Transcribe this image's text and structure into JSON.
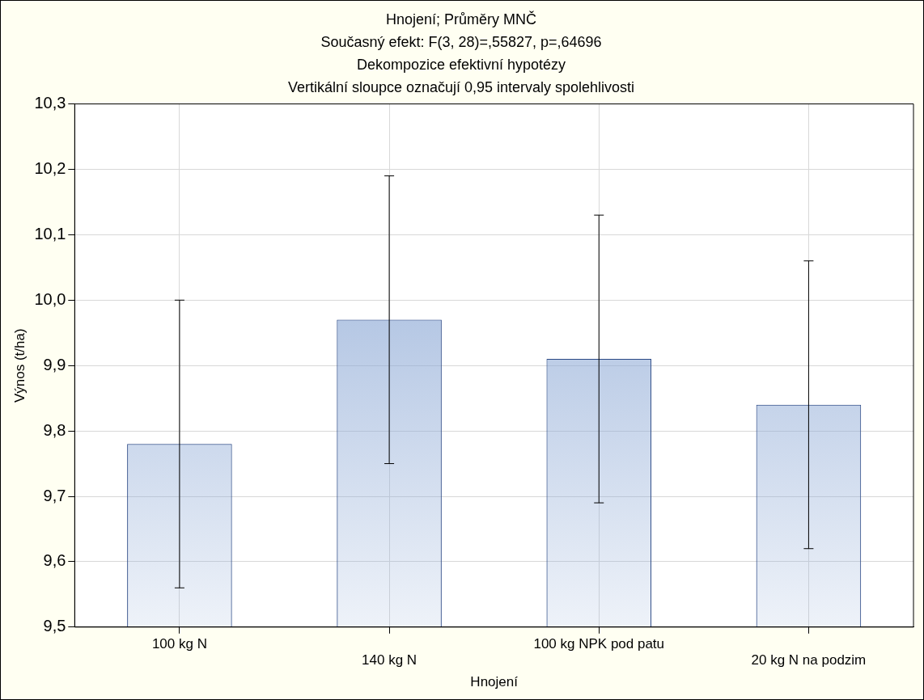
{
  "chart_data": {
    "type": "bar",
    "title": "Hnojení; Průměry MNČ",
    "subtitle": "Současný efekt: F(3, 28)=,55827, p=,64696",
    "annotations": [
      "Dekompozice efektivní hypotézy",
      "Vertikální sloupce označují 0,95 intervaly spolehlivosti"
    ],
    "xlabel": "Hnojení",
    "ylabel": "Výnos (t/ha)",
    "categories": [
      "100 kg N",
      "140 kg N",
      "100 kg NPK pod patu",
      "20 kg N na podzim"
    ],
    "values": [
      9.78,
      9.97,
      9.91,
      9.84
    ],
    "errors": [
      0.22,
      0.22,
      0.22,
      0.22
    ],
    "color": "#8eaad6",
    "ylim": [
      9.5,
      10.3
    ],
    "yticks": [
      {
        "value": 9.5,
        "label": "9,5"
      },
      {
        "value": 9.6,
        "label": "9,6"
      },
      {
        "value": 9.7,
        "label": "9,7"
      },
      {
        "value": 9.8,
        "label": "9,8"
      },
      {
        "value": 9.9,
        "label": "9,9"
      },
      {
        "value": 10.0,
        "label": "10,0"
      },
      {
        "value": 10.1,
        "label": "10,1"
      },
      {
        "value": 10.2,
        "label": "10,2"
      },
      {
        "value": 10.3,
        "label": "10,3"
      }
    ],
    "grid": true
  }
}
